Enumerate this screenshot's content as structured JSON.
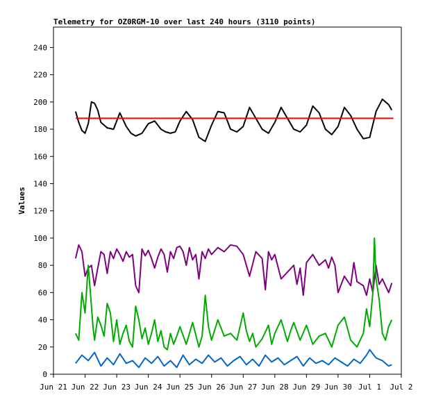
{
  "chart_data": {
    "type": "line",
    "title": "Telemetry for OZ0RGM-10 over last 240 hours (3110 points)",
    "ylabel": "Values",
    "xlabel": "",
    "x_ticks": [
      "Jun 21",
      "Jun 22",
      "Jun 23",
      "Jun 24",
      "Jun 25",
      "Jun 26",
      "Jun 27",
      "Jun 28",
      "Jun 29",
      "Jun 30",
      "Jul 1",
      "Jul 2"
    ],
    "y_ticks": [
      0,
      20,
      40,
      60,
      80,
      100,
      120,
      140,
      160,
      180,
      200,
      220,
      240
    ],
    "xlim": [
      0,
      11
    ],
    "ylim": [
      0,
      255
    ],
    "grid": false,
    "series": [
      {
        "color": "#000000",
        "x": [
          0.7,
          0.8,
          0.9,
          1.0,
          1.1,
          1.2,
          1.3,
          1.4,
          1.5,
          1.7,
          1.9,
          2.1,
          2.3,
          2.45,
          2.6,
          2.8,
          3.0,
          3.2,
          3.4,
          3.55,
          3.7,
          3.85,
          4.0,
          4.2,
          4.4,
          4.6,
          4.8,
          5.0,
          5.2,
          5.4,
          5.6,
          5.8,
          6.0,
          6.2,
          6.4,
          6.6,
          6.8,
          7.0,
          7.2,
          7.4,
          7.6,
          7.8,
          8.0,
          8.2,
          8.4,
          8.6,
          8.8,
          9.0,
          9.2,
          9.4,
          9.6,
          9.8,
          10.0,
          10.2,
          10.4,
          10.6,
          10.7
        ],
        "values": [
          193,
          185,
          179,
          177,
          184,
          200,
          199,
          194,
          185,
          181,
          180,
          192,
          182,
          177,
          175,
          177,
          184,
          186,
          180,
          178,
          177,
          178,
          186,
          193,
          187,
          174,
          171,
          183,
          193,
          192,
          180,
          178,
          182,
          196,
          188,
          180,
          177,
          185,
          196,
          188,
          180,
          178,
          183,
          197,
          192,
          180,
          176,
          182,
          196,
          190,
          180,
          173,
          174,
          193,
          202,
          198,
          194
        ]
      },
      {
        "color": "#ff0000",
        "x": [
          0.7,
          10.75
        ],
        "values": [
          188,
          188
        ]
      },
      {
        "color": "#7f007f",
        "x": [
          0.7,
          0.8,
          0.9,
          1.0,
          1.1,
          1.2,
          1.3,
          1.4,
          1.5,
          1.6,
          1.7,
          1.8,
          1.9,
          2.0,
          2.1,
          2.2,
          2.3,
          2.4,
          2.5,
          2.6,
          2.7,
          2.8,
          2.9,
          3.0,
          3.1,
          3.2,
          3.3,
          3.4,
          3.5,
          3.6,
          3.7,
          3.8,
          3.9,
          4.0,
          4.1,
          4.2,
          4.3,
          4.4,
          4.5,
          4.6,
          4.7,
          4.8,
          4.9,
          5.0,
          5.2,
          5.4,
          5.6,
          5.8,
          6.0,
          6.2,
          6.4,
          6.6,
          6.7,
          6.8,
          6.9,
          7.0,
          7.2,
          7.4,
          7.6,
          7.7,
          7.8,
          7.9,
          8.0,
          8.2,
          8.4,
          8.6,
          8.7,
          8.8,
          8.9,
          9.0,
          9.2,
          9.4,
          9.5,
          9.6,
          9.8,
          9.9,
          10.0,
          10.1,
          10.2,
          10.3,
          10.4,
          10.5,
          10.6,
          10.7
        ],
        "values": [
          85,
          95,
          90,
          72,
          78,
          80,
          65,
          78,
          90,
          88,
          74,
          90,
          85,
          92,
          88,
          83,
          90,
          86,
          88,
          65,
          60,
          92,
          87,
          91,
          85,
          78,
          86,
          92,
          88,
          75,
          90,
          85,
          93,
          94,
          90,
          80,
          93,
          84,
          88,
          70,
          90,
          85,
          92,
          88,
          93,
          90,
          95,
          94,
          88,
          72,
          90,
          85,
          62,
          90,
          84,
          88,
          70,
          75,
          80,
          66,
          78,
          58,
          82,
          88,
          80,
          84,
          78,
          86,
          80,
          60,
          72,
          65,
          82,
          68,
          65,
          58,
          70,
          60,
          80,
          66,
          70,
          65,
          60,
          67
        ]
      },
      {
        "color": "#00aa00",
        "x": [
          0.7,
          0.8,
          0.9,
          1.0,
          1.1,
          1.2,
          1.25,
          1.3,
          1.4,
          1.5,
          1.6,
          1.7,
          1.8,
          1.9,
          2.0,
          2.1,
          2.2,
          2.3,
          2.4,
          2.5,
          2.6,
          2.7,
          2.8,
          2.9,
          3.0,
          3.1,
          3.2,
          3.3,
          3.4,
          3.5,
          3.6,
          3.7,
          3.8,
          3.9,
          4.0,
          4.2,
          4.4,
          4.6,
          4.7,
          4.8,
          4.9,
          5.0,
          5.2,
          5.4,
          5.6,
          5.8,
          6.0,
          6.1,
          6.2,
          6.3,
          6.4,
          6.6,
          6.8,
          6.9,
          7.0,
          7.2,
          7.4,
          7.5,
          7.6,
          7.8,
          8.0,
          8.2,
          8.4,
          8.6,
          8.8,
          9.0,
          9.2,
          9.4,
          9.6,
          9.8,
          9.9,
          10.0,
          10.1,
          10.15,
          10.2,
          10.3,
          10.4,
          10.5,
          10.6,
          10.7
        ],
        "values": [
          30,
          25,
          60,
          45,
          80,
          50,
          35,
          25,
          42,
          36,
          28,
          52,
          45,
          24,
          40,
          22,
          30,
          36,
          24,
          20,
          50,
          40,
          26,
          34,
          22,
          30,
          40,
          24,
          32,
          20,
          18,
          30,
          22,
          28,
          35,
          22,
          38,
          20,
          28,
          58,
          35,
          25,
          40,
          28,
          30,
          25,
          45,
          32,
          24,
          30,
          20,
          26,
          36,
          22,
          30,
          40,
          24,
          32,
          38,
          25,
          36,
          22,
          28,
          30,
          20,
          36,
          42,
          25,
          20,
          30,
          48,
          35,
          60,
          100,
          70,
          55,
          30,
          25,
          35,
          40
        ]
      },
      {
        "color": "#0066cc",
        "x": [
          0.7,
          0.9,
          1.1,
          1.3,
          1.5,
          1.7,
          1.9,
          2.1,
          2.3,
          2.5,
          2.7,
          2.9,
          3.1,
          3.3,
          3.5,
          3.7,
          3.9,
          4.1,
          4.3,
          4.5,
          4.7,
          4.9,
          5.1,
          5.3,
          5.5,
          5.7,
          5.9,
          6.1,
          6.3,
          6.5,
          6.7,
          6.9,
          7.1,
          7.3,
          7.5,
          7.7,
          7.9,
          8.1,
          8.3,
          8.5,
          8.7,
          8.9,
          9.1,
          9.3,
          9.5,
          9.7,
          9.9,
          10.0,
          10.2,
          10.4,
          10.6,
          10.7
        ],
        "values": [
          8,
          14,
          10,
          16,
          6,
          12,
          7,
          15,
          8,
          10,
          5,
          12,
          8,
          13,
          6,
          10,
          5,
          14,
          7,
          11,
          8,
          14,
          9,
          12,
          6,
          10,
          13,
          7,
          11,
          6,
          14,
          9,
          12,
          7,
          10,
          13,
          6,
          12,
          8,
          10,
          7,
          12,
          9,
          6,
          11,
          8,
          14,
          18,
          12,
          10,
          6,
          7
        ]
      }
    ]
  }
}
